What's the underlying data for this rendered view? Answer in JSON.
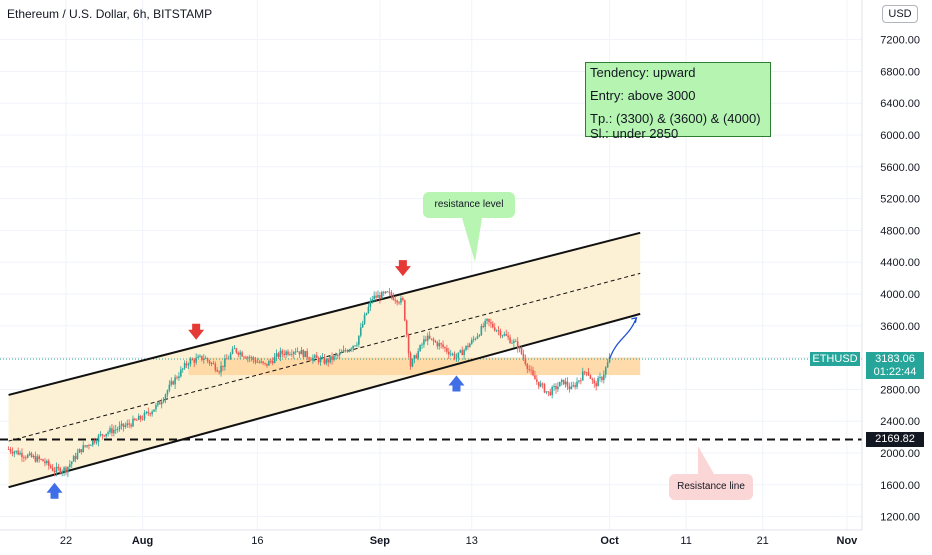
{
  "header": {
    "title": "Ethereum / U.S. Dollar, 6h, BITSTAMP",
    "currency": "USD"
  },
  "note": {
    "line1": "Tendency: upward",
    "line2": "Entry: above 3000",
    "line3": "Tp.: (3300) & (3600) & (4000)",
    "line4": "Sl.: under 2850"
  },
  "callouts": {
    "resistance_level": "resistance level",
    "resistance_line": "Resistance line"
  },
  "price_labels": {
    "symbol": "ETHUSD",
    "last_price": "3183.06",
    "countdown": "01:22:44",
    "line_price": "2169.82"
  },
  "chart_data": {
    "type": "candlestick",
    "title": "Ethereum / U.S. Dollar, 6h, BITSTAMP",
    "ylim": [
      1030,
      7640
    ],
    "y_ticks": [
      1200,
      1600,
      2000,
      2400,
      2800,
      3200,
      3600,
      4000,
      4400,
      4800,
      5200,
      5600,
      6000,
      6400,
      6800,
      7200
    ],
    "y_tick_labels": [
      "1200.00",
      "1600.00",
      "2000.00",
      "2400.00",
      "2800.00",
      "3200.00",
      "3600.00",
      "4000.00",
      "4400.00",
      "4800.00",
      "5200.00",
      "5600.00",
      "6000.00",
      "6400.00",
      "6800.00",
      "7200.00"
    ],
    "x_ticks": [
      {
        "label": "22",
        "day": 22
      },
      {
        "label": "Aug",
        "day": 32
      },
      {
        "label": "16",
        "day": 47
      },
      {
        "label": "Sep",
        "day": 63
      },
      {
        "label": "13",
        "day": 75
      },
      {
        "label": "Oct",
        "day": 93
      },
      {
        "label": "11",
        "day": 103
      },
      {
        "label": "21",
        "day": 113
      },
      {
        "label": "Nov",
        "day": 124
      }
    ],
    "price_path": [
      {
        "day": 14.5,
        "price": 2050
      },
      {
        "day": 17,
        "price": 1960
      },
      {
        "day": 19,
        "price": 1900
      },
      {
        "day": 20.5,
        "price": 1780
      },
      {
        "day": 22,
        "price": 1800
      },
      {
        "day": 24,
        "price": 2050
      },
      {
        "day": 27,
        "price": 2250
      },
      {
        "day": 30,
        "price": 2350
      },
      {
        "day": 32,
        "price": 2450
      },
      {
        "day": 34,
        "price": 2600
      },
      {
        "day": 36,
        "price": 2900
      },
      {
        "day": 38,
        "price": 3150
      },
      {
        "day": 40,
        "price": 3200
      },
      {
        "day": 42,
        "price": 3050
      },
      {
        "day": 44,
        "price": 3300
      },
      {
        "day": 46,
        "price": 3200
      },
      {
        "day": 48,
        "price": 3100
      },
      {
        "day": 50,
        "price": 3250
      },
      {
        "day": 52,
        "price": 3300
      },
      {
        "day": 54,
        "price": 3200
      },
      {
        "day": 56,
        "price": 3150
      },
      {
        "day": 58,
        "price": 3250
      },
      {
        "day": 60,
        "price": 3400
      },
      {
        "day": 61,
        "price": 3700
      },
      {
        "day": 62,
        "price": 3950
      },
      {
        "day": 64,
        "price": 4000
      },
      {
        "day": 66,
        "price": 3900
      },
      {
        "day": 67,
        "price": 3100
      },
      {
        "day": 69,
        "price": 3450
      },
      {
        "day": 71,
        "price": 3350
      },
      {
        "day": 73,
        "price": 3200
      },
      {
        "day": 75,
        "price": 3400
      },
      {
        "day": 77,
        "price": 3650
      },
      {
        "day": 79,
        "price": 3500
      },
      {
        "day": 81,
        "price": 3350
      },
      {
        "day": 82,
        "price": 3150
      },
      {
        "day": 83,
        "price": 2950
      },
      {
        "day": 85,
        "price": 2750
      },
      {
        "day": 87,
        "price": 2900
      },
      {
        "day": 88,
        "price": 2800
      },
      {
        "day": 90,
        "price": 3050
      },
      {
        "day": 91,
        "price": 2850
      },
      {
        "day": 92,
        "price": 2950
      },
      {
        "day": 93,
        "price": 3183
      }
    ],
    "projection_path": [
      {
        "day": 93,
        "price": 3183
      },
      {
        "day": 94,
        "price": 3450
      },
      {
        "day": 95.5,
        "price": 3500
      },
      {
        "day": 96.5,
        "price": 3700
      }
    ],
    "channel": {
      "upper": [
        {
          "day": 14.5,
          "price": 2730
        },
        {
          "day": 97,
          "price": 4770
        }
      ],
      "middle": [
        {
          "day": 14.5,
          "price": 2150
        },
        {
          "day": 97,
          "price": 4260
        }
      ],
      "lower": [
        {
          "day": 14.5,
          "price": 1570
        },
        {
          "day": 97,
          "price": 3750
        }
      ]
    },
    "support_zone": {
      "day_start": 38,
      "day_end": 97,
      "price_low": 2980,
      "price_high": 3200
    },
    "resistance_line_price": 2169.82,
    "last_price": 3183.06,
    "markers": {
      "down": [
        {
          "day": 39,
          "price": 3500
        },
        {
          "day": 66,
          "price": 4300
        }
      ],
      "up": [
        {
          "day": 20.5,
          "price": 1550
        },
        {
          "day": 73,
          "price": 2900
        }
      ]
    },
    "colors": {
      "up_candle": "#26a69a",
      "down_candle": "#ef5350",
      "zone": "#ffd59e",
      "channel_fill": "#fdf0d0",
      "marker_down": "#e53935",
      "marker_up": "#3f6ee8",
      "projection": "#1e53d8",
      "last_price": "#26a69a"
    }
  }
}
